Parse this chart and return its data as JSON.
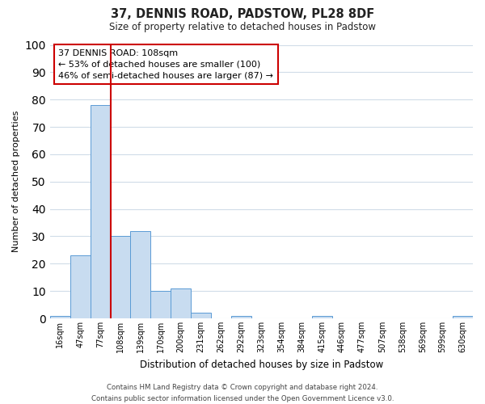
{
  "title": "37, DENNIS ROAD, PADSTOW, PL28 8DF",
  "subtitle": "Size of property relative to detached houses in Padstow",
  "xlabel": "Distribution of detached houses by size in Padstow",
  "ylabel": "Number of detached properties",
  "bin_labels": [
    "16sqm",
    "47sqm",
    "77sqm",
    "108sqm",
    "139sqm",
    "170sqm",
    "200sqm",
    "231sqm",
    "262sqm",
    "292sqm",
    "323sqm",
    "354sqm",
    "384sqm",
    "415sqm",
    "446sqm",
    "477sqm",
    "507sqm",
    "538sqm",
    "569sqm",
    "599sqm",
    "630sqm"
  ],
  "bar_heights": [
    1,
    23,
    78,
    30,
    32,
    10,
    11,
    2,
    0,
    1,
    0,
    0,
    0,
    1,
    0,
    0,
    0,
    0,
    0,
    0,
    1
  ],
  "bar_color": "#c8dcf0",
  "bar_edge_color": "#5b9bd5",
  "reference_line_x": 3,
  "reference_line_color": "#cc0000",
  "ylim": [
    0,
    100
  ],
  "yticks": [
    0,
    10,
    20,
    30,
    40,
    50,
    60,
    70,
    80,
    90,
    100
  ],
  "annotation_title": "37 DENNIS ROAD: 108sqm",
  "annotation_line1": "← 53% of detached houses are smaller (100)",
  "annotation_line2": "46% of semi-detached houses are larger (87) →",
  "annotation_box_color": "#ffffff",
  "annotation_box_edge": "#cc0000",
  "footer_line1": "Contains HM Land Registry data © Crown copyright and database right 2024.",
  "footer_line2": "Contains public sector information licensed under the Open Government Licence v3.0.",
  "background_color": "#ffffff",
  "grid_color": "#d0dce8"
}
